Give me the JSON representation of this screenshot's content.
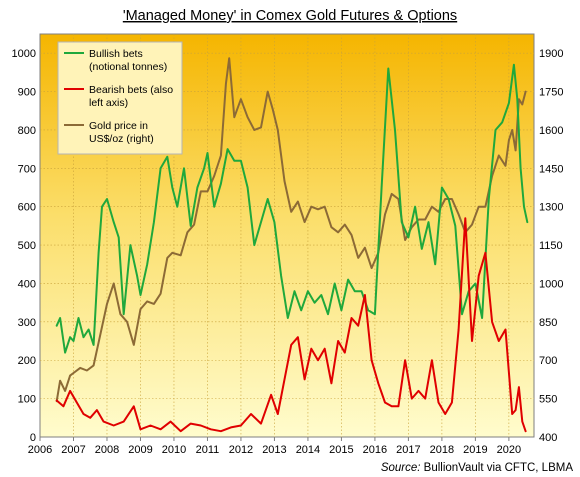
{
  "chart_data": {
    "type": "line",
    "title": "'Managed Money' in Comex Gold Futures & Options",
    "source_label": "Source:",
    "source_text": "BullionVault via CFTC, LBMA",
    "x_ticks": [
      "2006",
      "2007",
      "2008",
      "2009",
      "2010",
      "2011",
      "2012",
      "2013",
      "2014",
      "2015",
      "2016",
      "2017",
      "2018",
      "2019",
      "2020"
    ],
    "xlim": [
      2006.0,
      2020.75
    ],
    "left_axis": {
      "ylim": [
        0,
        1050
      ],
      "ticks": [
        "0",
        "100",
        "200",
        "300",
        "400",
        "500",
        "600",
        "700",
        "800",
        "900",
        "1000"
      ]
    },
    "right_axis": {
      "ylim": [
        400,
        1975
      ],
      "ticks": [
        "400",
        "550",
        "700",
        "850",
        "1000",
        "1150",
        "1300",
        "1450",
        "1600",
        "1750",
        "1900"
      ]
    },
    "grid": true,
    "legend_position": "top-left",
    "series": [
      {
        "name": "Bullish bets (notional tonnes)",
        "legend_lines": [
          "Bullish bets",
          "(notional tonnes)"
        ],
        "axis": "left",
        "color": "#1fa83c",
        "x": [
          2006.5,
          2006.6,
          2006.75,
          2006.9,
          2007.0,
          2007.15,
          2007.3,
          2007.45,
          2007.6,
          2007.75,
          2007.85,
          2008.0,
          2008.2,
          2008.35,
          2008.5,
          2008.7,
          2008.9,
          2009.0,
          2009.2,
          2009.4,
          2009.6,
          2009.8,
          2009.95,
          2010.1,
          2010.3,
          2010.5,
          2010.7,
          2010.9,
          2011.0,
          2011.2,
          2011.4,
          2011.6,
          2011.8,
          2012.0,
          2012.2,
          2012.4,
          2012.6,
          2012.8,
          2013.0,
          2013.2,
          2013.4,
          2013.6,
          2013.8,
          2014.0,
          2014.2,
          2014.4,
          2014.6,
          2014.8,
          2015.0,
          2015.2,
          2015.4,
          2015.6,
          2015.8,
          2016.0,
          2016.2,
          2016.4,
          2016.6,
          2016.8,
          2017.0,
          2017.2,
          2017.4,
          2017.6,
          2017.8,
          2018.0,
          2018.2,
          2018.4,
          2018.6,
          2018.8,
          2019.0,
          2019.2,
          2019.4,
          2019.6,
          2019.8,
          2020.0,
          2020.15,
          2020.25,
          2020.35,
          2020.45,
          2020.55
        ],
        "values": [
          290,
          310,
          220,
          260,
          250,
          310,
          260,
          280,
          240,
          480,
          600,
          620,
          560,
          520,
          320,
          500,
          420,
          370,
          450,
          560,
          700,
          730,
          650,
          600,
          700,
          550,
          650,
          700,
          740,
          600,
          660,
          750,
          720,
          720,
          650,
          500,
          560,
          620,
          560,
          420,
          310,
          380,
          330,
          380,
          350,
          370,
          320,
          400,
          330,
          410,
          380,
          380,
          330,
          320,
          650,
          960,
          800,
          560,
          520,
          600,
          490,
          560,
          450,
          650,
          620,
          550,
          320,
          380,
          400,
          310,
          620,
          800,
          820,
          870,
          970,
          880,
          700,
          600,
          560
        ]
      },
      {
        "name": "Bearish bets (also left axis)",
        "legend_lines": [
          "Bearish bets (also",
          "left axis)"
        ],
        "axis": "left",
        "color": "#e00000",
        "x": [
          2006.5,
          2006.7,
          2006.9,
          2007.1,
          2007.3,
          2007.5,
          2007.7,
          2007.9,
          2008.2,
          2008.5,
          2008.8,
          2009.0,
          2009.3,
          2009.6,
          2009.9,
          2010.2,
          2010.5,
          2010.8,
          2011.1,
          2011.4,
          2011.7,
          2012.0,
          2012.3,
          2012.6,
          2012.9,
          2013.1,
          2013.3,
          2013.5,
          2013.7,
          2013.9,
          2014.1,
          2014.3,
          2014.5,
          2014.7,
          2014.9,
          2015.1,
          2015.3,
          2015.5,
          2015.7,
          2015.9,
          2016.1,
          2016.3,
          2016.5,
          2016.7,
          2016.9,
          2017.1,
          2017.3,
          2017.5,
          2017.7,
          2017.9,
          2018.1,
          2018.3,
          2018.5,
          2018.7,
          2018.9,
          2019.1,
          2019.3,
          2019.5,
          2019.7,
          2019.9,
          2020.1,
          2020.2,
          2020.3,
          2020.4,
          2020.5
        ],
        "values": [
          95,
          80,
          120,
          90,
          60,
          50,
          70,
          40,
          30,
          40,
          80,
          20,
          30,
          20,
          40,
          15,
          35,
          30,
          20,
          15,
          25,
          30,
          60,
          35,
          110,
          60,
          150,
          240,
          260,
          150,
          230,
          200,
          230,
          140,
          250,
          220,
          310,
          290,
          370,
          200,
          140,
          90,
          80,
          80,
          200,
          100,
          120,
          100,
          200,
          90,
          60,
          90,
          280,
          570,
          250,
          420,
          480,
          300,
          250,
          280,
          60,
          70,
          130,
          40,
          15
        ]
      },
      {
        "name": "Gold price in US$/oz (right)",
        "legend_lines": [
          "Gold price in",
          "US$/oz (right)"
        ],
        "axis": "right",
        "color": "#8c6a36",
        "x": [
          2006.5,
          2006.6,
          2006.75,
          2006.9,
          2007.0,
          2007.2,
          2007.4,
          2007.6,
          2007.8,
          2008.0,
          2008.2,
          2008.4,
          2008.6,
          2008.8,
          2009.0,
          2009.2,
          2009.4,
          2009.6,
          2009.8,
          2009.95,
          2010.2,
          2010.4,
          2010.6,
          2010.8,
          2011.0,
          2011.2,
          2011.4,
          2011.55,
          2011.65,
          2011.8,
          2012.0,
          2012.2,
          2012.4,
          2012.6,
          2012.8,
          2012.95,
          2013.1,
          2013.3,
          2013.5,
          2013.7,
          2013.9,
          2014.1,
          2014.3,
          2014.5,
          2014.7,
          2014.9,
          2015.1,
          2015.3,
          2015.5,
          2015.7,
          2015.9,
          2016.1,
          2016.3,
          2016.5,
          2016.7,
          2016.9,
          2017.1,
          2017.3,
          2017.5,
          2017.7,
          2017.9,
          2018.1,
          2018.3,
          2018.5,
          2018.7,
          2018.9,
          2019.1,
          2019.3,
          2019.5,
          2019.7,
          2019.9,
          2020.0,
          2020.1,
          2020.2,
          2020.3,
          2020.4,
          2020.5
        ],
        "values": [
          540,
          620,
          580,
          640,
          650,
          670,
          660,
          680,
          800,
          920,
          1000,
          880,
          850,
          760,
          900,
          930,
          920,
          960,
          1100,
          1120,
          1110,
          1200,
          1230,
          1360,
          1360,
          1420,
          1500,
          1780,
          1880,
          1650,
          1720,
          1650,
          1600,
          1610,
          1750,
          1680,
          1600,
          1400,
          1280,
          1320,
          1240,
          1300,
          1290,
          1300,
          1220,
          1200,
          1230,
          1190,
          1100,
          1140,
          1060,
          1120,
          1270,
          1350,
          1330,
          1170,
          1220,
          1250,
          1250,
          1300,
          1280,
          1330,
          1330,
          1270,
          1200,
          1230,
          1300,
          1300,
          1420,
          1500,
          1460,
          1560,
          1600,
          1520,
          1720,
          1700,
          1750
        ]
      }
    ]
  }
}
